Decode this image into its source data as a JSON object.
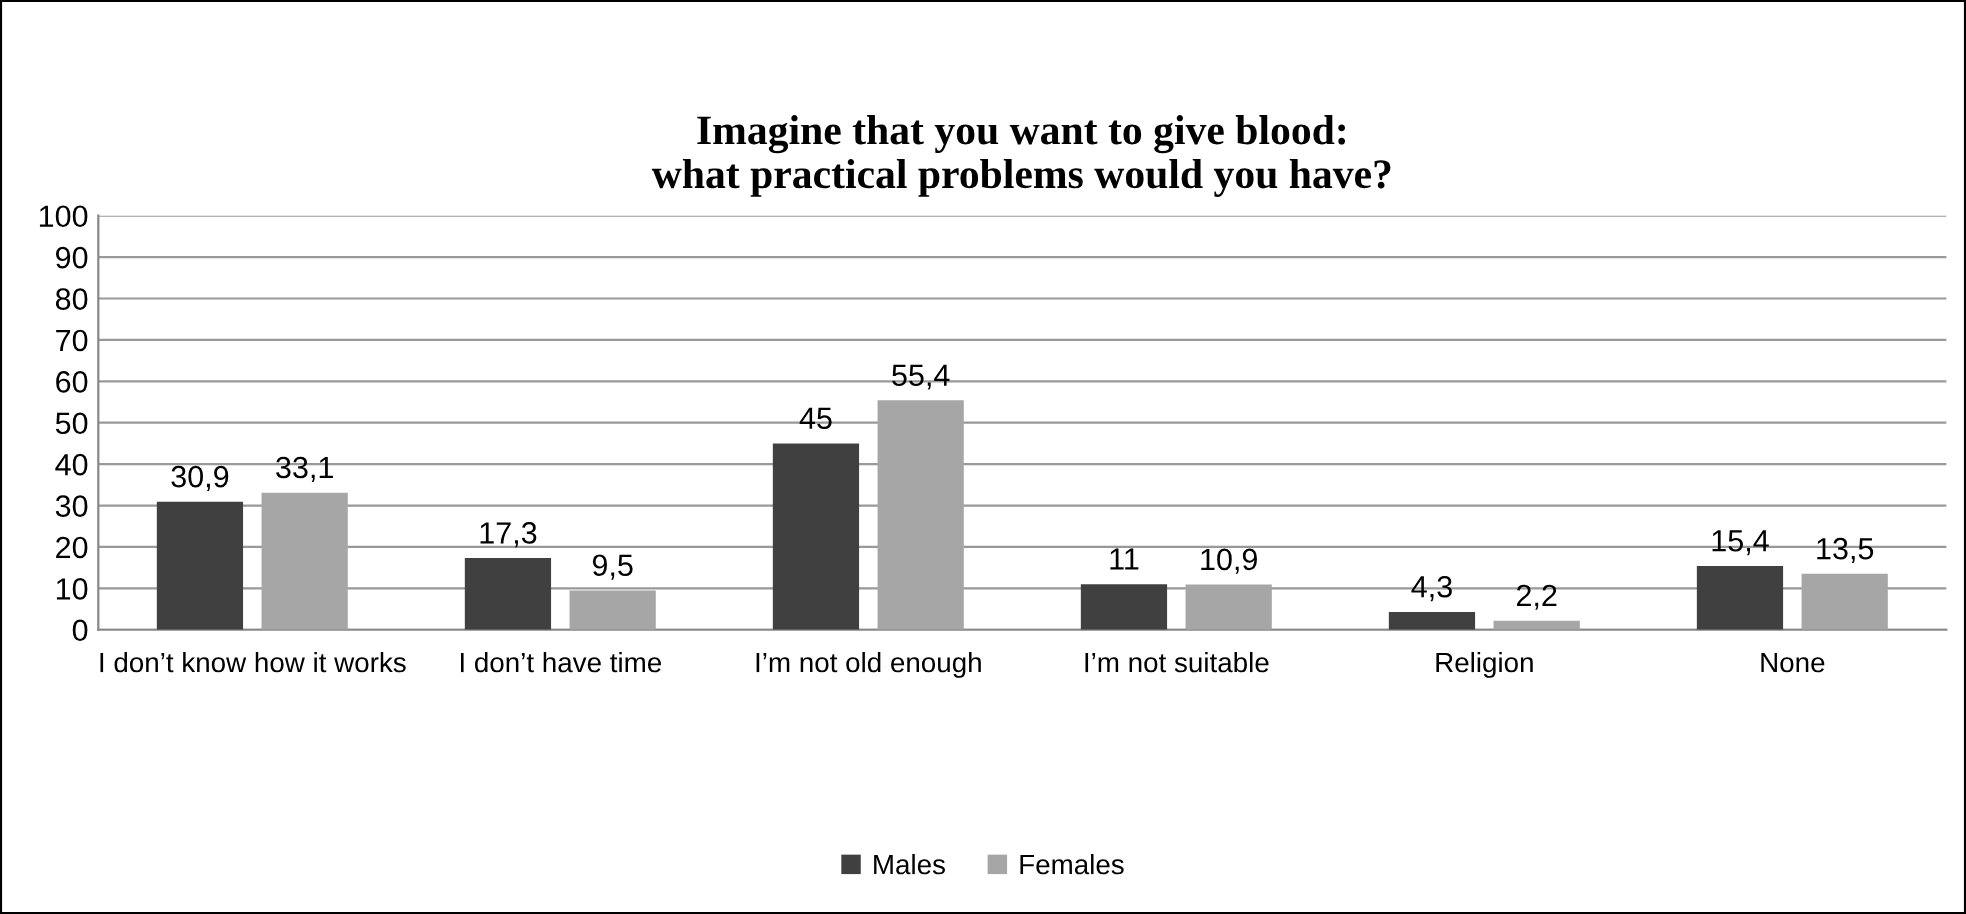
{
  "chart_data": {
    "type": "bar",
    "title": "Imagine that you want to give blood:\nwhat practical problems would you have?",
    "categories": [
      "I don’t know how it works",
      "I don’t have time",
      "I’m not old enough",
      "I’m not suitable",
      "Religion",
      "None"
    ],
    "series": [
      {
        "name": "Males",
        "color": "#404040",
        "values": [
          30.9,
          17.3,
          45,
          11,
          4.3,
          15.4
        ],
        "value_labels": [
          "30,9",
          "17,3",
          "45",
          "11",
          "4,3",
          "15,4"
        ]
      },
      {
        "name": "Females",
        "color": "#a6a6a6",
        "values": [
          33.1,
          9.5,
          55.4,
          10.9,
          2.2,
          13.5
        ],
        "value_labels": [
          "33,1",
          "9,5",
          "55,4",
          "10,9",
          "2,2",
          "13,5"
        ]
      }
    ],
    "ylim": [
      0,
      100
    ],
    "yticks": [
      0,
      10,
      20,
      30,
      40,
      50,
      60,
      70,
      80,
      90,
      100
    ],
    "grid": "y",
    "legend": "bottom"
  }
}
